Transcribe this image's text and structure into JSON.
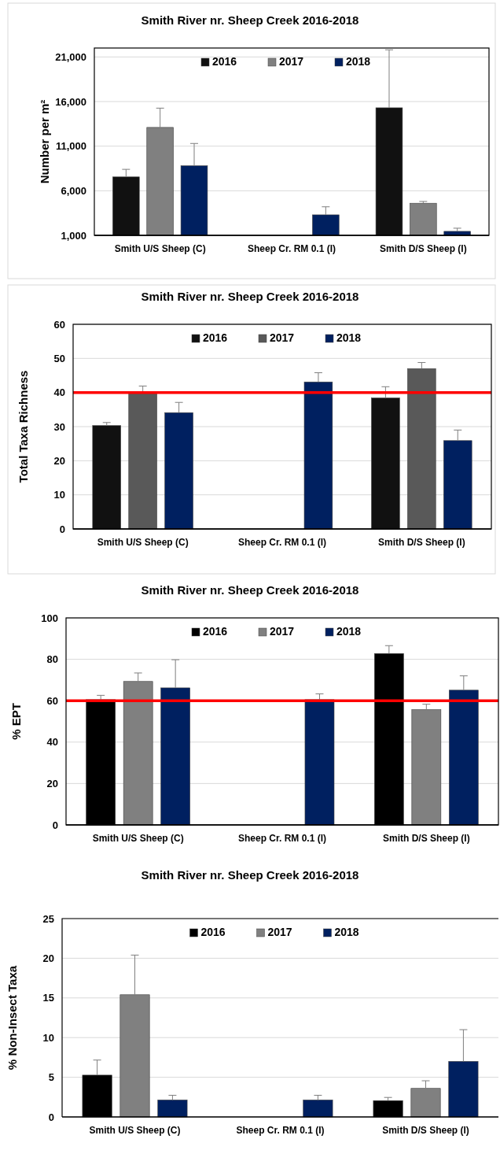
{
  "chart_data": [
    {
      "type": "bar",
      "title": "Smith River nr. Sheep Creek 2016-2018",
      "ylabel": "Number per m²",
      "categories": [
        "Smith U/S Sheep (C)",
        "Sheep Cr. RM 0.1 (I)",
        "Smith D/S Sheep (I)"
      ],
      "ylim": [
        1000,
        22000
      ],
      "yticks": [
        {
          "value": 1000,
          "label": "1,000"
        },
        {
          "value": 6000,
          "label": "6,000"
        },
        {
          "value": 11000,
          "label": "11,000"
        },
        {
          "value": 16000,
          "label": "16,000"
        },
        {
          "value": 21000,
          "label": "21,000"
        }
      ],
      "grid": "y",
      "legend": "top",
      "series": [
        {
          "name": "2016",
          "color": "#111111",
          "values": [
            7550,
            null,
            15300
          ],
          "errors": [
            [
              7550,
              8400
            ],
            null,
            [
              15300,
              21800
            ]
          ]
        },
        {
          "name": "2017",
          "color": "#808080",
          "values": [
            13100,
            null,
            4600
          ],
          "errors": [
            [
              13100,
              15260
            ],
            null,
            [
              4600,
              4800
            ]
          ]
        },
        {
          "name": "2018",
          "color": "#002060",
          "values": [
            8800,
            3300,
            1450
          ],
          "errors": [
            [
              8800,
              11300
            ],
            [
              3300,
              4200
            ],
            [
              1450,
              1800
            ]
          ]
        }
      ]
    },
    {
      "type": "bar",
      "title": "Smith River nr. Sheep Creek 2016-2018",
      "ylabel": "Total Taxa Richness",
      "categories": [
        "Smith U/S Sheep (C)",
        "Sheep Cr. RM 0.1 (I)",
        "Smith D/S Sheep (I)"
      ],
      "ylim": [
        0,
        60
      ],
      "yticks": [
        0,
        10,
        20,
        30,
        40,
        50,
        60
      ],
      "grid": "y",
      "legend": "top",
      "ref_lines": [
        {
          "axis": "y",
          "value": 40,
          "color": "#ff0000"
        }
      ],
      "series": [
        {
          "name": "2016",
          "color": "#111111",
          "values": [
            30.3,
            null,
            38.4
          ],
          "errors": [
            [
              30.3,
              31.2
            ],
            null,
            [
              38.4,
              41.7
            ]
          ]
        },
        {
          "name": "2017",
          "color": "#595959",
          "values": [
            40.3,
            null,
            47.0
          ],
          "errors": [
            [
              40.3,
              41.9
            ],
            null,
            [
              47.0,
              48.8
            ]
          ]
        },
        {
          "name": "2018",
          "color": "#002060",
          "values": [
            34.1,
            43.1,
            25.9
          ],
          "errors": [
            [
              34.1,
              37.1
            ],
            [
              43.1,
              45.8
            ],
            [
              25.9,
              29.0
            ]
          ]
        }
      ]
    },
    {
      "type": "bar",
      "title": "Smith River nr. Sheep Creek 2016-2018",
      "ylabel": "% EPT",
      "categories": [
        "Smith U/S Sheep (C)",
        "Sheep Cr. RM 0.1 (I)",
        "Smith D/S Sheep (I)"
      ],
      "ylim": [
        0,
        100
      ],
      "yticks": [
        0,
        20,
        40,
        60,
        80,
        100
      ],
      "grid": "y",
      "legend": "top",
      "ref_lines": [
        {
          "axis": "y",
          "value": 60,
          "color": "#ff0000"
        }
      ],
      "series": [
        {
          "name": "2016",
          "color": "#000000",
          "values": [
            60.5,
            null,
            82.8
          ],
          "errors": [
            [
              60.5,
              62.6
            ],
            null,
            [
              82.8,
              86.6
            ]
          ]
        },
        {
          "name": "2017",
          "color": "#808080",
          "values": [
            69.3,
            null,
            55.7
          ],
          "errors": [
            [
              69.3,
              73.4
            ],
            null,
            [
              55.7,
              58.3
            ]
          ]
        },
        {
          "name": "2018",
          "color": "#002060",
          "values": [
            66.2,
            60.5,
            65.1
          ],
          "errors": [
            [
              66.2,
              79.8
            ],
            [
              60.5,
              63.3
            ],
            [
              65.1,
              72.0
            ]
          ]
        }
      ]
    },
    {
      "type": "bar",
      "title": "Smith River nr. Sheep Creek 2016-2018",
      "ylabel": "% Non-Insect  Taxa",
      "categories": [
        "Smith U/S Sheep (C)",
        "Sheep Cr. RM 0.1 (I)",
        "Smith D/S Sheep (I)"
      ],
      "ylim": [
        0,
        25
      ],
      "yticks": [
        0,
        5,
        10,
        15,
        20,
        25
      ],
      "grid": "y",
      "legend": "top",
      "series": [
        {
          "name": "2016",
          "color": "#000000",
          "values": [
            5.27,
            null,
            2.06
          ],
          "errors": [
            [
              5.27,
              7.17
            ],
            null,
            [
              2.06,
              2.46
            ]
          ]
        },
        {
          "name": "2017",
          "color": "#808080",
          "values": [
            15.4,
            null,
            3.6
          ],
          "errors": [
            [
              15.4,
              20.4
            ],
            null,
            [
              3.6,
              4.56
            ]
          ]
        },
        {
          "name": "2018",
          "color": "#002060",
          "values": [
            2.14,
            2.14,
            7.0
          ],
          "errors": [
            [
              2.14,
              2.73
            ],
            [
              2.14,
              2.73
            ],
            [
              7.0,
              11.0
            ]
          ]
        }
      ]
    }
  ]
}
